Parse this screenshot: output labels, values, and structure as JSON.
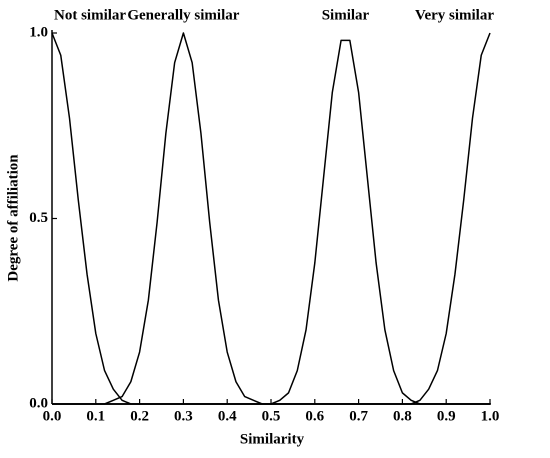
{
  "chart_data": {
    "type": "line",
    "xlabel": "Similarity",
    "ylabel": "Degree of affiliation",
    "annotations": [
      "Not similar",
      "Generally similar",
      "Similar",
      "Very similar"
    ],
    "x": [
      0,
      0.02,
      0.04,
      0.06,
      0.08,
      0.1,
      0.12,
      0.14,
      0.16,
      0.18,
      0.2,
      0.22,
      0.24,
      0.26,
      0.28,
      0.3,
      0.32,
      0.34,
      0.36,
      0.38,
      0.4,
      0.42,
      0.44,
      0.46,
      0.48,
      0.5,
      0.52,
      0.54,
      0.56,
      0.58,
      0.6,
      0.62,
      0.64,
      0.66,
      0.68,
      0.7,
      0.72,
      0.74,
      0.76,
      0.78,
      0.8,
      0.82,
      0.84,
      0.86,
      0.88,
      0.9,
      0.92,
      0.94,
      0.96,
      0.98,
      1
    ],
    "series": [
      {
        "name": "Not similar",
        "color": "#000000",
        "values": [
          1,
          0.94,
          0.77,
          0.55,
          0.35,
          0.19,
          0.09,
          0.04,
          0.01,
          0,
          0,
          0,
          0,
          0,
          0,
          0,
          0,
          0,
          0,
          0,
          0,
          0,
          0,
          0,
          0,
          0,
          0,
          0,
          0,
          0,
          0,
          0,
          0,
          0,
          0,
          0,
          0,
          0,
          0,
          0,
          0,
          0,
          0,
          0,
          0,
          0,
          0,
          0,
          0,
          0,
          0
        ]
      },
      {
        "name": "Generally similar",
        "color": "#000000",
        "values": [
          0,
          0,
          0,
          0,
          0,
          0,
          0,
          0.01,
          0.02,
          0.06,
          0.14,
          0.28,
          0.49,
          0.73,
          0.92,
          1,
          0.92,
          0.73,
          0.49,
          0.28,
          0.14,
          0.06,
          0.02,
          0.01,
          0,
          0,
          0,
          0,
          0,
          0,
          0,
          0,
          0,
          0,
          0,
          0,
          0,
          0,
          0,
          0,
          0,
          0,
          0,
          0,
          0,
          0,
          0,
          0,
          0,
          0,
          0
        ]
      },
      {
        "name": "Similar",
        "color": "#000000",
        "values": [
          0,
          0,
          0,
          0,
          0,
          0,
          0,
          0,
          0,
          0,
          0,
          0,
          0,
          0,
          0,
          0,
          0,
          0,
          0,
          0,
          0,
          0,
          0,
          0,
          0,
          0,
          0.01,
          0.03,
          0.09,
          0.2,
          0.38,
          0.61,
          0.84,
          0.98,
          0.98,
          0.84,
          0.61,
          0.38,
          0.2,
          0.09,
          0.03,
          0.01,
          0,
          0,
          0,
          0,
          0,
          0,
          0,
          0,
          0
        ]
      },
      {
        "name": "Very similar",
        "color": "#000000",
        "values": [
          0,
          0,
          0,
          0,
          0,
          0,
          0,
          0,
          0,
          0,
          0,
          0,
          0,
          0,
          0,
          0,
          0,
          0,
          0,
          0,
          0,
          0,
          0,
          0,
          0,
          0,
          0,
          0,
          0,
          0,
          0,
          0,
          0,
          0,
          0,
          0,
          0,
          0,
          0,
          0,
          0,
          0,
          0.01,
          0.04,
          0.09,
          0.19,
          0.35,
          0.55,
          0.77,
          0.94,
          1
        ]
      }
    ],
    "xlim": [
      0,
      1
    ],
    "ylim": [
      0,
      1
    ],
    "xticks": [
      {
        "value": 0,
        "label": "0.0"
      },
      0.1,
      0.2,
      0.3,
      0.4,
      0.5,
      0.6,
      0.7,
      0.8,
      0.9,
      {
        "value": 1,
        "label": "1.0"
      }
    ],
    "yticks": [
      {
        "value": 0,
        "label": "0.0"
      },
      0.5,
      {
        "value": 1,
        "label": "1.0"
      }
    ],
    "grid": false
  }
}
